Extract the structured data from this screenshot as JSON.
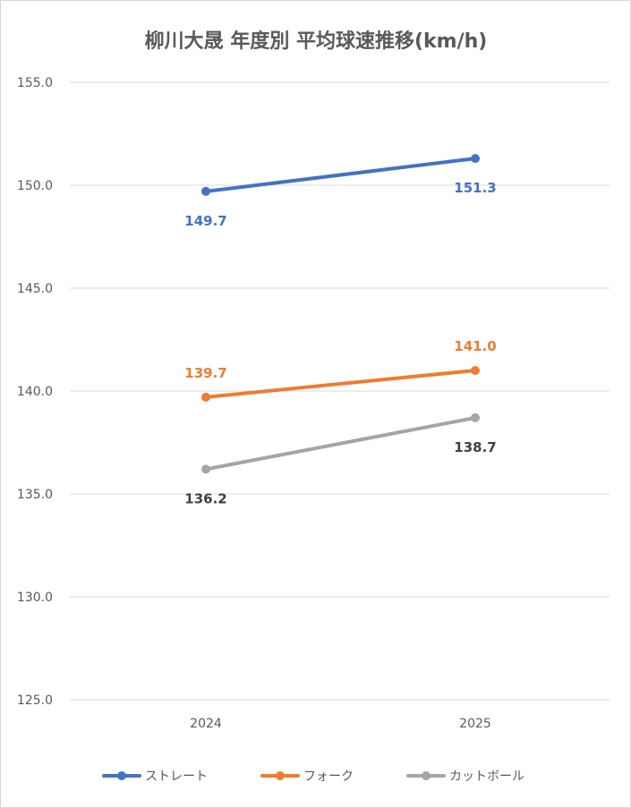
{
  "chart_data": {
    "type": "line",
    "title": "柳川大晟 年度別 平均球速推移(km/h)",
    "categories": [
      "2024",
      "2025"
    ],
    "ylim": [
      125.0,
      155.0
    ],
    "ytick_step": 5,
    "yticks": [
      "125.0",
      "130.0",
      "135.0",
      "140.0",
      "145.0",
      "150.0",
      "155.0"
    ],
    "grid": true,
    "legend_position": "bottom",
    "series": [
      {
        "name": "ストレート",
        "color": "#4472c4",
        "values": [
          149.7,
          151.3
        ],
        "labels": [
          "149.7",
          "151.3"
        ],
        "label_pos": [
          "below",
          "below"
        ],
        "label_color": "#4472c4"
      },
      {
        "name": "フォーク",
        "color": "#ed7d31",
        "values": [
          139.7,
          141.0
        ],
        "labels": [
          "139.7",
          "141.0"
        ],
        "label_pos": [
          "above",
          "above"
        ],
        "label_color": "#ed7d31"
      },
      {
        "name": "カットボール",
        "color": "#a5a5a5",
        "values": [
          136.2,
          138.7
        ],
        "labels": [
          "136.2",
          "138.7"
        ],
        "label_pos": [
          "below",
          "below"
        ],
        "label_color": "#404040"
      }
    ]
  }
}
